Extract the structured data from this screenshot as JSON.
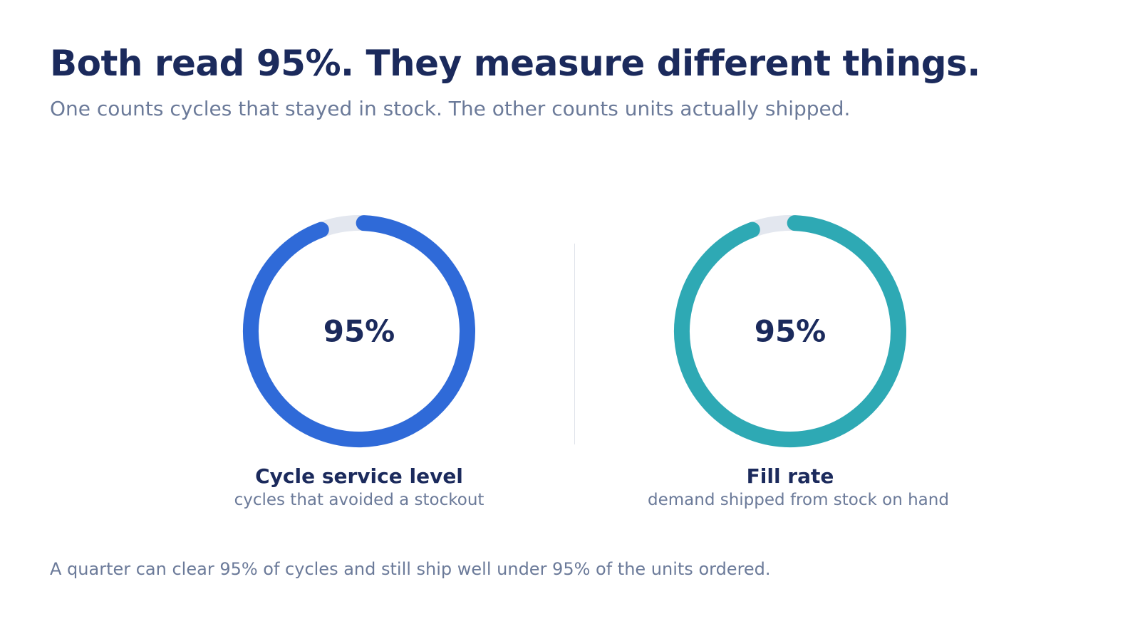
{
  "header": {
    "title": "Both read 95%. They measure different things.",
    "subtitle": "One counts cycles that stayed in stock. The other counts units actually shipped."
  },
  "chart_data": [
    {
      "type": "gauge",
      "value": 95,
      "max": 100,
      "value_label": "95%",
      "label": "Cycle service level",
      "sublabel": "cycles that avoided a stockout",
      "color": "#2f6ad8",
      "track_color": "#e3e7ef"
    },
    {
      "type": "gauge",
      "value": 95,
      "max": 100,
      "value_label": "95%",
      "label": "Fill rate",
      "sublabel": "demand shipped from stock on hand",
      "color": "#2ea9b4",
      "track_color": "#e3e7ef"
    }
  ],
  "footnote": "A quarter can clear 95% of cycles and still ship well under 95% of the units ordered."
}
